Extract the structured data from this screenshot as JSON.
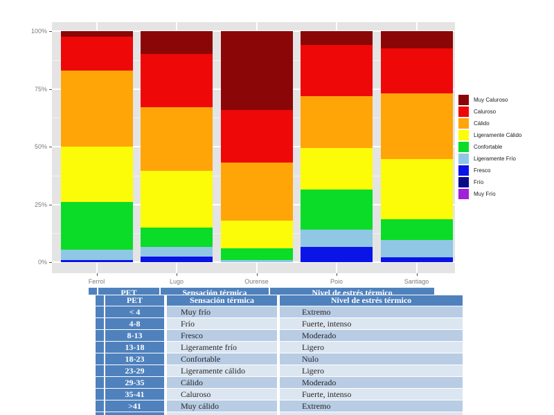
{
  "chart": {
    "panel_color": "#e4e4e4",
    "grid_color": "#ffffff",
    "tick_label_color": "#7a7a7a",
    "y_ticks": [
      {
        "label": "0%",
        "value": 0
      },
      {
        "label": "25%",
        "value": 25
      },
      {
        "label": "50%",
        "value": 50
      },
      {
        "label": "75%",
        "value": 75
      },
      {
        "label": "100%",
        "value": 100
      }
    ]
  },
  "chart_data": {
    "type": "bar",
    "subtype": "stacked-percent",
    "title": "",
    "xlabel": "",
    "ylabel": "",
    "ylim": [
      0,
      100
    ],
    "grid": true,
    "legend_position": "right",
    "categories": [
      "Ferrol",
      "Lugo",
      "Ourense",
      "Poio",
      "Santiago"
    ],
    "y_tick_labels": [
      "0%",
      "25%",
      "50%",
      "75%",
      "100%"
    ],
    "series": [
      {
        "name": "Muy Caluroso",
        "color": "#8b0606",
        "values": [
          2.5,
          10,
          34,
          6,
          7.5
        ]
      },
      {
        "name": "Caluroso",
        "color": "#ee0808",
        "values": [
          14.5,
          23,
          23,
          22,
          19.5
        ]
      },
      {
        "name": "Cálido",
        "color": "#ffa507",
        "values": [
          33,
          27.5,
          25,
          22.5,
          28.5
        ]
      },
      {
        "name": "Ligeramente Cálido",
        "color": "#fcfc09",
        "values": [
          24,
          24.5,
          12,
          18,
          26
        ]
      },
      {
        "name": "Confortable",
        "color": "#0bdc28",
        "values": [
          20.5,
          8.5,
          5,
          17.5,
          9
        ]
      },
      {
        "name": "Ligeramente Frío",
        "color": "#8fc7e5",
        "values": [
          4.5,
          4,
          1,
          7.5,
          7.5
        ]
      },
      {
        "name": "Fresco",
        "color": "#0a14e6",
        "values": [
          1,
          2.5,
          0,
          6.5,
          2
        ]
      },
      {
        "name": "Frío",
        "color": "#0a0a8b",
        "values": [
          0,
          0,
          0,
          0,
          0
        ]
      },
      {
        "name": "Muy Frío",
        "color": "#a021d9",
        "values": [
          0,
          0,
          0,
          0,
          0
        ]
      }
    ]
  },
  "table": {
    "headers": [
      "PET",
      "Sensación térmica",
      "Nivel de estrés térmico"
    ],
    "header_bg": "#4f81bd",
    "row_bg_dark": "#b8cce4",
    "row_bg_light": "#dce6f1",
    "rows": [
      {
        "pet": "< 4",
        "sensacion": "Muy frío",
        "nivel": "Extremo"
      },
      {
        "pet": "4-8",
        "sensacion": "Frío",
        "nivel": "Fuerte, intenso"
      },
      {
        "pet": "8-13",
        "sensacion": "Fresco",
        "nivel": "Moderado"
      },
      {
        "pet": "13-18",
        "sensacion": "Ligeramente frío",
        "nivel": "Ligero"
      },
      {
        "pet": "18-23",
        "sensacion": "Confortable",
        "nivel": "Nulo"
      },
      {
        "pet": "23-29",
        "sensacion": "Ligeramente cálido",
        "nivel": "Ligero"
      },
      {
        "pet": "29-35",
        "sensacion": "Cálido",
        "nivel": "Moderado"
      },
      {
        "pet": "35-41",
        "sensacion": "Caluroso",
        "nivel": "Fuerte, intenso"
      },
      {
        "pet": ">41",
        "sensacion": "Muy cálido",
        "nivel": "Extremo"
      }
    ]
  }
}
